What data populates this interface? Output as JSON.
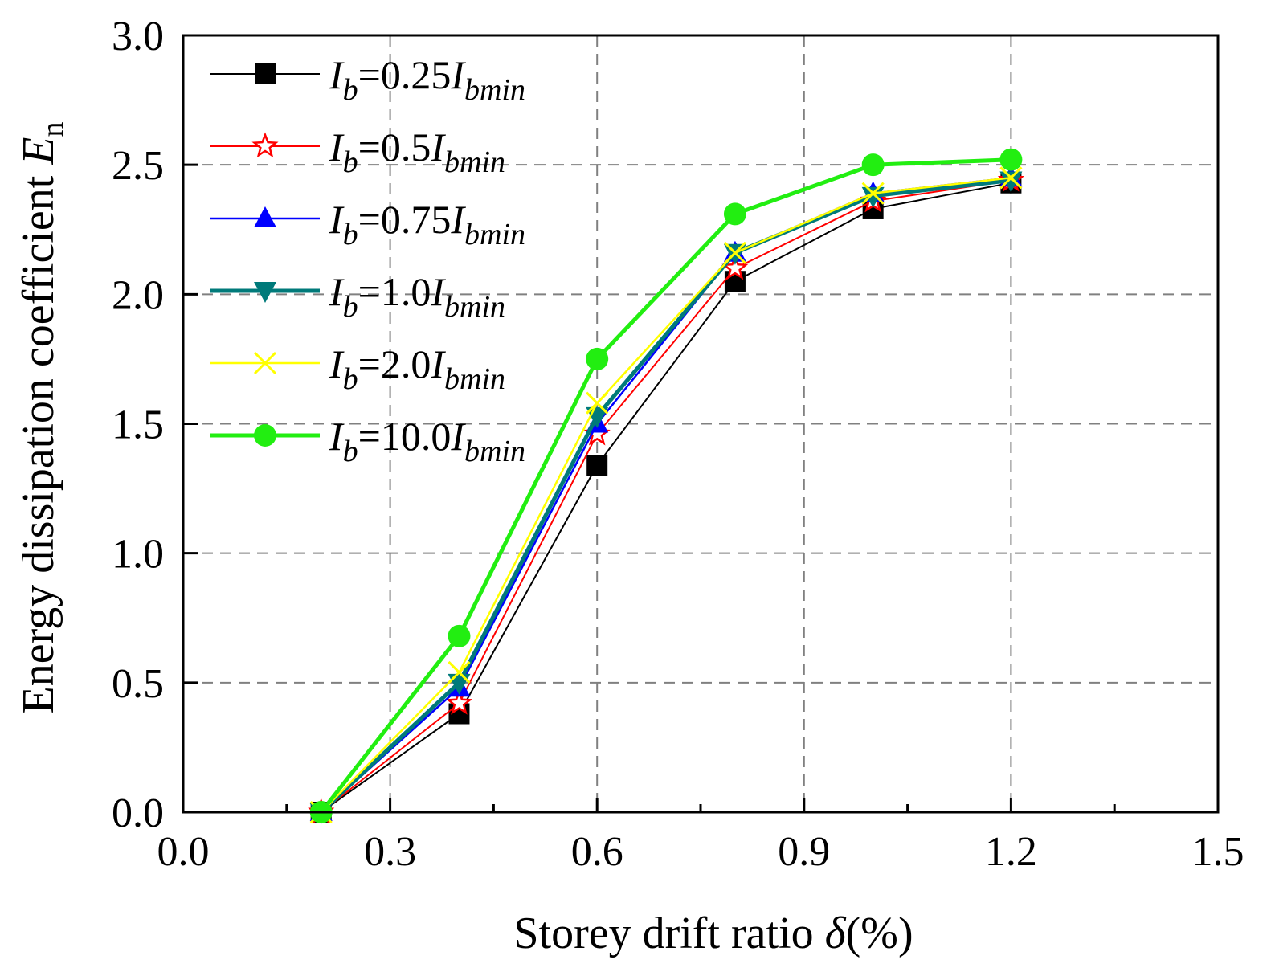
{
  "chart_data": {
    "type": "line",
    "xlabel": "Storey drift ratio",
    "xlabel_symbol": "δ",
    "xlabel_unit": "(%)",
    "ylabel": "Energy dissipation coefficient",
    "ylabel_symbol": "E",
    "ylabel_subscript": "n",
    "xlim": [
      0.0,
      1.5
    ],
    "ylim": [
      0.0,
      3.0
    ],
    "x_ticks": [
      "0.0",
      "0.3",
      "0.6",
      "0.9",
      "1.2",
      "1.5"
    ],
    "y_ticks": [
      "0.0",
      "0.5",
      "1.0",
      "1.5",
      "2.0",
      "2.5",
      "3.0"
    ],
    "grid": true,
    "legend_position": "top-left",
    "x": [
      0.2,
      0.4,
      0.6,
      0.8,
      1.0,
      1.2
    ],
    "series": [
      {
        "name": "Ib=0.25Ibmin",
        "label": {
          "var": "I",
          "sub": "b",
          "coef": "=0.25",
          "var2": "I",
          "sub2": "bmin"
        },
        "color": "#000000",
        "marker": "square",
        "line_width": 2,
        "values": [
          0.0,
          0.38,
          1.34,
          2.05,
          2.33,
          2.43
        ]
      },
      {
        "name": "Ib=0.5Ibmin",
        "label": {
          "var": "I",
          "sub": "b",
          "coef": "=0.5",
          "var2": "I",
          "sub2": "bmin"
        },
        "color": "#ff0000",
        "marker": "star-open",
        "line_width": 2,
        "values": [
          0.0,
          0.42,
          1.46,
          2.1,
          2.36,
          2.44
        ]
      },
      {
        "name": "Ib=0.75Ibmin",
        "label": {
          "var": "I",
          "sub": "b",
          "coef": "=0.75",
          "var2": "I",
          "sub2": "bmin"
        },
        "color": "#0000ff",
        "marker": "triangle-up",
        "line_width": 2.5,
        "values": [
          0.0,
          0.48,
          1.5,
          2.16,
          2.39,
          2.45
        ]
      },
      {
        "name": "Ib=1.0Ibmin",
        "label": {
          "var": "I",
          "sub": "b",
          "coef": "=1.0",
          "var2": "I",
          "sub2": "bmin"
        },
        "color": "#007a7a",
        "marker": "triangle-down",
        "line_width": 5,
        "values": [
          0.0,
          0.5,
          1.53,
          2.16,
          2.38,
          2.44
        ]
      },
      {
        "name": "Ib=2.0Ibmin",
        "label": {
          "var": "I",
          "sub": "b",
          "coef": "=2.0",
          "var2": "I",
          "sub2": "bmin"
        },
        "color": "#ffff00",
        "marker": "x",
        "line_width": 2.5,
        "values": [
          0.0,
          0.54,
          1.58,
          2.16,
          2.39,
          2.45
        ]
      },
      {
        "name": "Ib=10.0Ibmin",
        "label": {
          "var": "I",
          "sub": "b",
          "coef": "=10.0",
          "var2": "I",
          "sub2": "bmin"
        },
        "color": "#22ee11",
        "marker": "circle",
        "line_width": 5,
        "values": [
          0.0,
          0.68,
          1.75,
          2.31,
          2.5,
          2.52
        ]
      }
    ]
  }
}
